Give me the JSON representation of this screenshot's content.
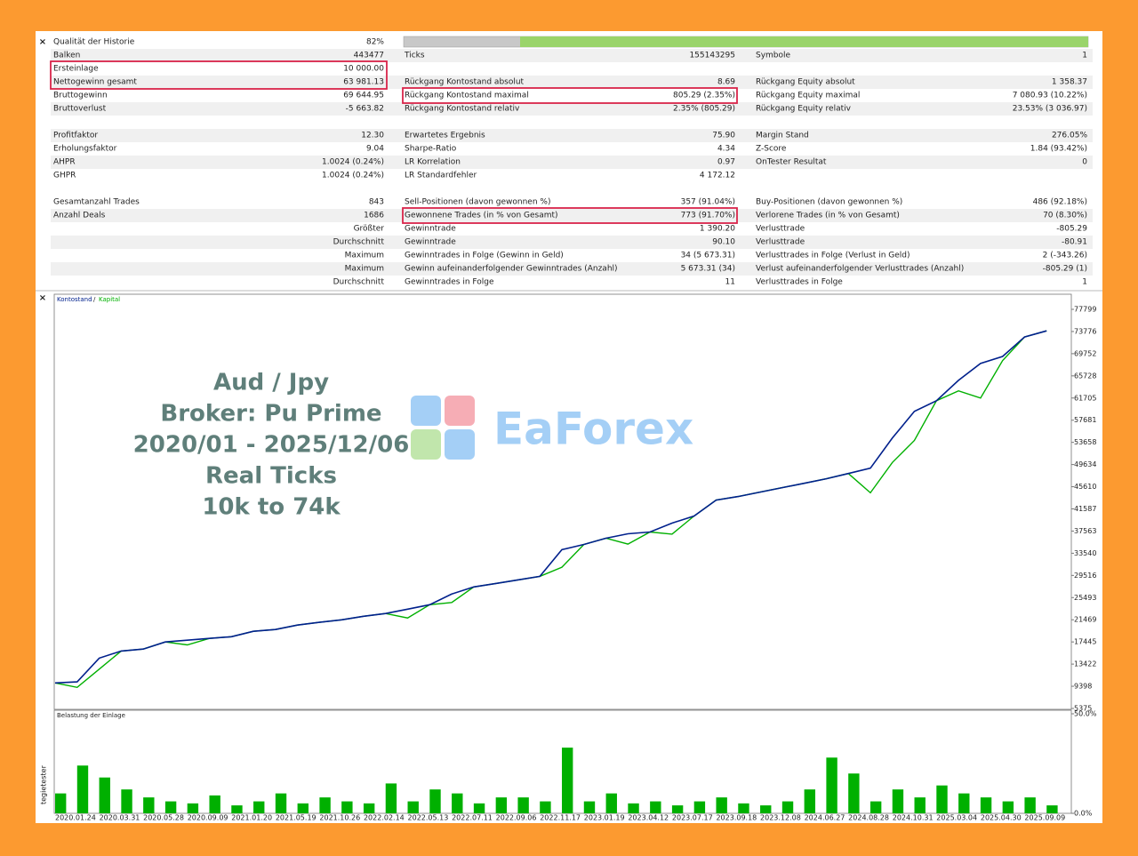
{
  "report": {
    "sections": [
      [
        {
          "left": {
            "label": "Qualität der Historie",
            "value": "82%"
          }
        },
        {
          "left": {
            "label": "Balken",
            "value": "443477"
          },
          "middle": {
            "label": "Ticks",
            "value": "155143295"
          },
          "right": {
            "label": "Symbole",
            "value": "1"
          }
        },
        {
          "left": {
            "label": "Ersteinlage",
            "value": "10 000.00"
          }
        },
        {
          "left": {
            "label": "Nettogewinn gesamt",
            "value": "63 981.13"
          },
          "middle": {
            "label": "Rückgang Kontostand absolut",
            "value": "8.69"
          },
          "right": {
            "label": "Rückgang Equity absolut",
            "value": "1 358.37"
          }
        },
        {
          "left": {
            "label": "Bruttogewinn",
            "value": "69 644.95"
          },
          "middle": {
            "label": "Rückgang Kontostand maximal",
            "value": "805.29 (2.35%)"
          },
          "right": {
            "label": "Rückgang Equity maximal",
            "value": "7 080.93 (10.22%)"
          }
        },
        {
          "left": {
            "label": "Bruttoverlust",
            "value": "-5 663.82"
          },
          "middle": {
            "label": "Rückgang Kontostand relativ",
            "value": "2.35% (805.29)"
          },
          "right": {
            "label": "Rückgang Equity relativ",
            "value": "23.53% (3 036.97)"
          }
        }
      ],
      [
        {
          "left": {
            "label": "Profitfaktor",
            "value": "12.30"
          },
          "middle": {
            "label": "Erwartetes Ergebnis",
            "value": "75.90"
          },
          "right": {
            "label": "Margin Stand",
            "value": "276.05%"
          }
        },
        {
          "left": {
            "label": "Erholungsfaktor",
            "value": "9.04"
          },
          "middle": {
            "label": "Sharpe-Ratio",
            "value": "4.34"
          },
          "right": {
            "label": "Z-Score",
            "value": "1.84 (93.42%)"
          }
        },
        {
          "left": {
            "label": "AHPR",
            "value": "1.0024 (0.24%)"
          },
          "middle": {
            "label": "LR Korrelation",
            "value": "0.97"
          },
          "right": {
            "label": "OnTester Resultat",
            "value": "0"
          }
        },
        {
          "left": {
            "label": "GHPR",
            "value": "1.0024 (0.24%)"
          },
          "middle": {
            "label": "LR Standardfehler",
            "value": "4 172.12"
          }
        }
      ],
      [
        {
          "left": {
            "label": "Gesamtanzahl Trades",
            "value": "843"
          },
          "middle": {
            "label": "Sell-Positionen (davon gewonnen %)",
            "value": "357 (91.04%)"
          },
          "right": {
            "label": "Buy-Positionen (davon gewonnen %)",
            "value": "486 (92.18%)"
          }
        },
        {
          "left": {
            "label": "Anzahl Deals",
            "value": "1686"
          },
          "middle": {
            "label": "Gewonnene Trades (in % von Gesamt)",
            "value": "773 (91.70%)"
          },
          "right": {
            "label": "Verlorene Trades (in % von Gesamt)",
            "value": "70 (8.30%)"
          }
        },
        {
          "left": {
            "caption": "Größter"
          },
          "middle": {
            "label": "Gewinntrade",
            "value": "1 390.20"
          },
          "right": {
            "label": "Verlusttrade",
            "value": "-805.29"
          }
        },
        {
          "left": {
            "caption": "Durchschnitt"
          },
          "middle": {
            "label": "Gewinntrade",
            "value": "90.10"
          },
          "right": {
            "label": "Verlusttrade",
            "value": "-80.91"
          }
        },
        {
          "left": {
            "caption": "Maximum"
          },
          "middle": {
            "label": "Gewinntrades in Folge (Gewinn in Geld)",
            "value": "34 (5 673.31)"
          },
          "right": {
            "label": "Verlusttrades in Folge (Verlust in Geld)",
            "value": "2 (-343.26)"
          }
        },
        {
          "left": {
            "caption": "Maximum"
          },
          "middle": {
            "label": "Gewinn aufeinanderfolgender Gewinntrades (Anzahl)",
            "value": "5 673.31 (34)"
          },
          "right": {
            "label": "Verlust aufeinanderfolgender Verlusttrades (Anzahl)",
            "value": "-805.29 (1)"
          }
        },
        {
          "left": {
            "caption": "Durchschnitt"
          },
          "middle": {
            "label": "Gewinntrades in Folge",
            "value": "11"
          },
          "right": {
            "label": "Verlusttrades in Folge",
            "value": "1"
          }
        }
      ]
    ]
  },
  "overlay": {
    "lines": [
      "Aud / Jpy",
      "Broker: Pu Prime",
      "2020/01 - 2025/12/06",
      "Real Ticks",
      "10k to 74k"
    ],
    "logo": "EaForex"
  },
  "panel_tab": "tegietester",
  "legend_separator": "/",
  "chart_data": [
    {
      "type": "line",
      "categories": [
        "2020.01.24",
        null,
        "2020.03.31",
        null,
        "2020.05.28",
        null,
        "2020.09.09",
        null,
        "2021.01.20",
        null,
        "2021.05.19",
        null,
        "2021.10.26",
        null,
        "2022.02.14",
        null,
        "2022.05.13",
        null,
        "2022.07.11",
        null,
        "2022.09.06",
        null,
        "2022.11.17",
        null,
        "2023.01.19",
        null,
        "2023.04.12",
        null,
        "2023.07.17",
        null,
        "2023.09.18",
        null,
        "2023.12.08",
        null,
        "2024.06.27",
        null,
        "2024.08.28",
        null,
        "2024.10.31",
        null,
        "2025.03.04",
        null,
        "2025.04.30",
        null,
        "2025.09.09",
        null
      ],
      "series": [
        {
          "name": "Kapital",
          "color": "#00b000",
          "values": [
            10000,
            9200,
            12500,
            15800,
            16150,
            17440,
            16900,
            18090,
            18400,
            19370,
            19700,
            20500,
            21000,
            21460,
            22100,
            22600,
            21800,
            24200,
            24600,
            27420,
            28060,
            28700,
            29350,
            31000,
            35140,
            36270,
            35200,
            37400,
            37000,
            40290,
            43190,
            43830,
            44630,
            45440,
            46240,
            47050,
            48010,
            44500,
            50000,
            54000,
            61210,
            63000,
            61700,
            68500,
            72790,
            73900
          ]
        },
        {
          "name": "Kontostand",
          "color": "#00208c",
          "values": [
            10000,
            10200,
            14500,
            15800,
            16150,
            17440,
            17760,
            18090,
            18400,
            19370,
            19700,
            20500,
            21000,
            21460,
            22100,
            22600,
            23400,
            24200,
            26130,
            27420,
            28060,
            28700,
            29350,
            34180,
            35140,
            36270,
            37070,
            37400,
            39000,
            40290,
            43190,
            43830,
            44630,
            45440,
            46240,
            47050,
            48010,
            48980,
            54450,
            59280,
            61210,
            64910,
            67970,
            69250,
            72790,
            73900
          ]
        }
      ],
      "ylim": [
        5375,
        77799
      ],
      "yticks": [
        5375,
        9398,
        13422,
        17445,
        21469,
        25493,
        29516,
        33540,
        37563,
        41587,
        45610,
        49634,
        53658,
        57681,
        61705,
        65728,
        69752,
        73776,
        77799
      ]
    },
    {
      "type": "bar",
      "title": "Belastung der Einlage",
      "color": "#00b000",
      "values": [
        10,
        24,
        18,
        12,
        8,
        6,
        5,
        9,
        4,
        6,
        10,
        5,
        8,
        6,
        5,
        15,
        6,
        12,
        10,
        5,
        8,
        8,
        6,
        33,
        6,
        10,
        5,
        6,
        4,
        6,
        8,
        5,
        4,
        6,
        12,
        28,
        20,
        6,
        12,
        8,
        14,
        10,
        8,
        6,
        8,
        4
      ],
      "ylim": [
        0,
        50
      ],
      "yticks": [
        {
          "value": 50,
          "label": "50.0%"
        },
        {
          "value": 0,
          "label": "0.0%"
        }
      ]
    }
  ]
}
